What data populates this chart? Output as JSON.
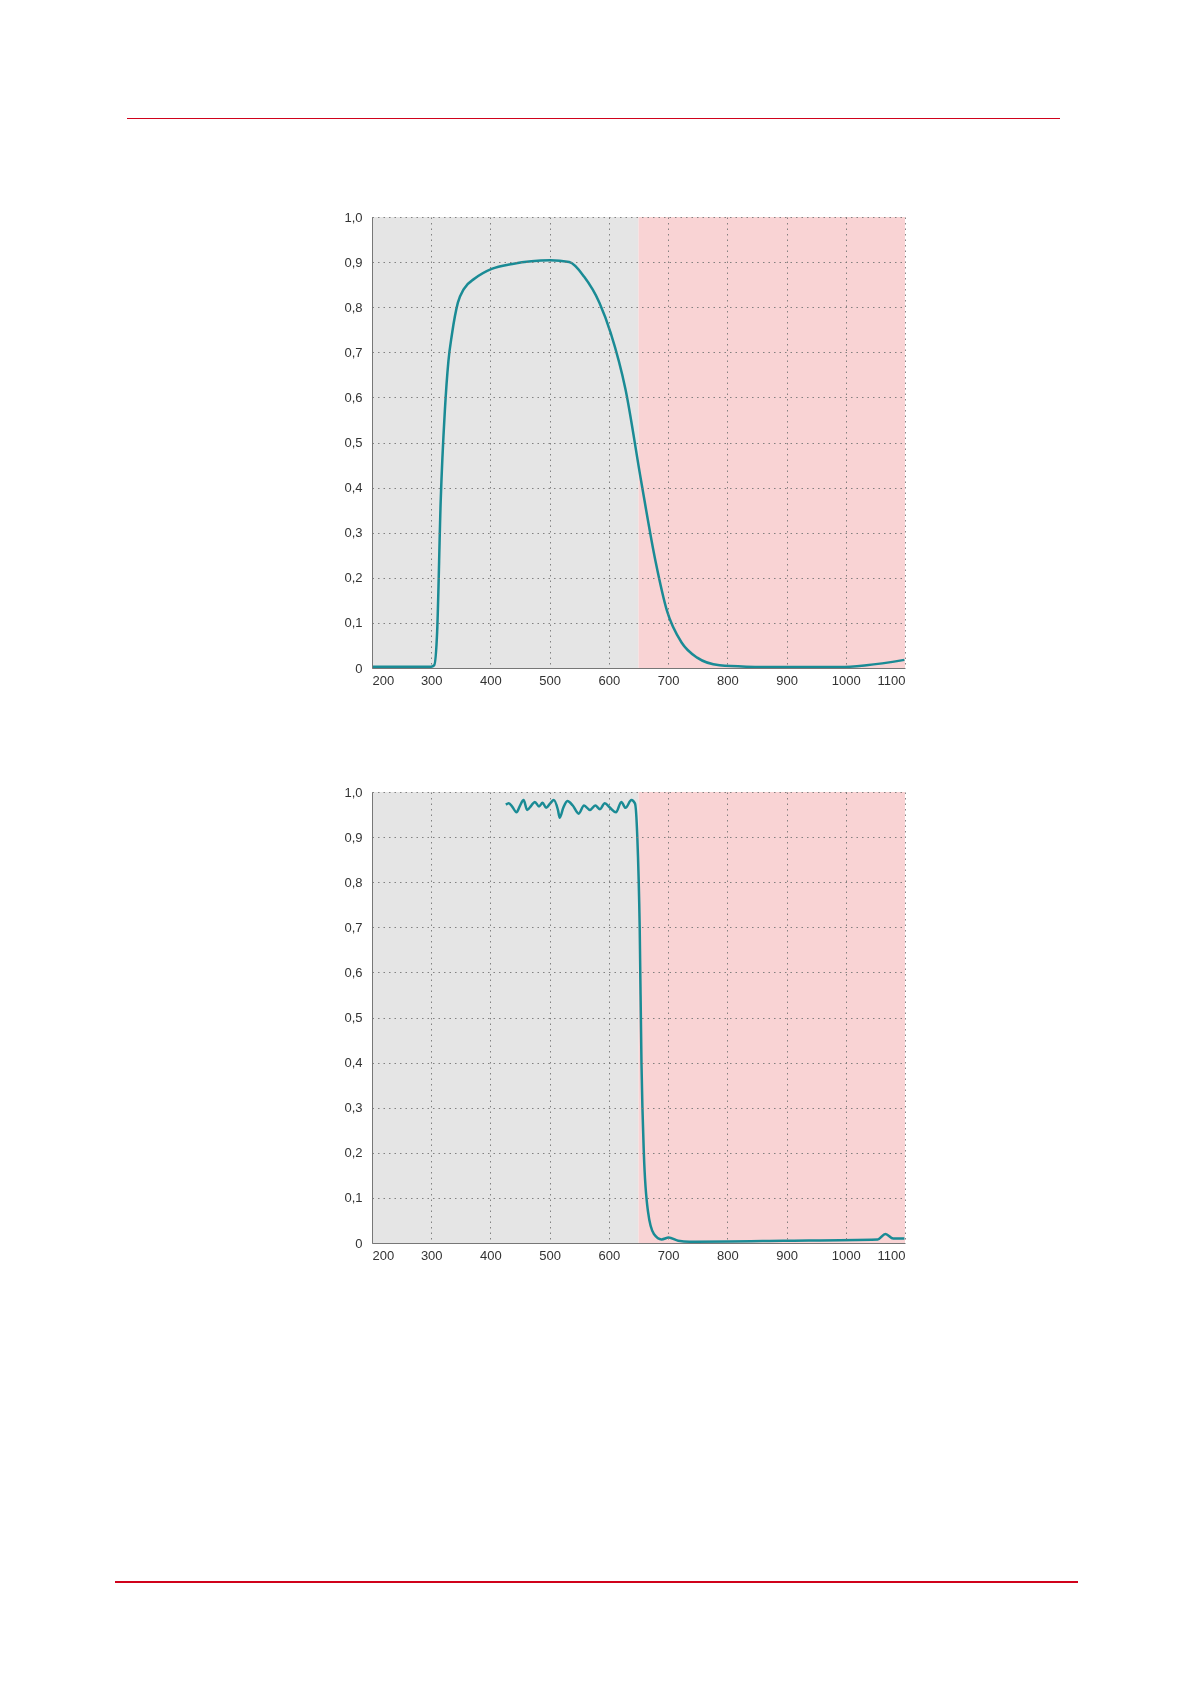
{
  "chart_data": [
    {
      "type": "line",
      "x": [
        200,
        300,
        305,
        310,
        316,
        323,
        329,
        335,
        345,
        355,
        374,
        402,
        437,
        501,
        533,
        558,
        584,
        603,
        628,
        654,
        679,
        698,
        723,
        749,
        787,
        832,
        895,
        991,
        1035,
        1099
      ],
      "series": [
        {
          "color": "#1a8b95",
          "values": [
            0.003,
            0.003,
            0.006,
            0.08,
            0.37,
            0.57,
            0.68,
            0.74,
            0.81,
            0.84,
            0.864,
            0.885,
            0.896,
            0.904,
            0.9,
            0.868,
            0.81,
            0.743,
            0.618,
            0.418,
            0.235,
            0.127,
            0.056,
            0.023,
            0.006,
            0.003,
            0.002,
            0.002,
            0.006,
            0.018
          ]
        }
      ],
      "xlim": [
        200,
        1100
      ],
      "xticks": [
        200,
        300,
        400,
        500,
        600,
        700,
        800,
        900,
        1000,
        1100
      ],
      "ylim": [
        0,
        1
      ],
      "yticks": [
        0,
        {
          "value": 0.1,
          "label": "0,1"
        },
        {
          "value": 0.2,
          "label": "0,2"
        },
        {
          "value": 0.3,
          "label": "0,3"
        },
        {
          "value": 0.4,
          "label": "0,4"
        },
        {
          "value": 0.5,
          "label": "0,5"
        },
        {
          "value": 0.6,
          "label": "0,6"
        },
        {
          "value": 0.7,
          "label": "0,7"
        },
        {
          "value": 0.8,
          "label": "0,8"
        },
        {
          "value": 0.9,
          "label": "0,9"
        },
        {
          "value": 1,
          "label": "1,0"
        }
      ],
      "bands": [
        {
          "axis": "x",
          "from": 200,
          "to": 650,
          "color": "#e5e5e5"
        },
        {
          "axis": "x",
          "from": 650,
          "to": 1100,
          "color": "#f9d3d4"
        }
      ],
      "grid": true,
      "line_style": "solid",
      "marker": "none"
    },
    {
      "type": "line",
      "x": [
        426,
        431,
        437,
        444,
        450,
        456,
        462,
        469,
        475,
        482,
        488,
        494,
        501,
        507,
        514,
        517,
        523,
        530,
        539,
        549,
        558,
        568,
        577,
        585,
        593,
        602,
        612,
        621,
        628,
        638,
        644,
        648,
        652,
        655,
        659,
        666,
        676,
        689,
        701,
        717,
        736,
        895,
        1054,
        1067,
        1080,
        1099
      ],
      "series": [
        {
          "color": "#1a8b95",
          "values": [
            0.972,
            0.975,
            0.967,
            0.955,
            0.97,
            0.982,
            0.96,
            0.97,
            0.978,
            0.968,
            0.976,
            0.965,
            0.975,
            0.982,
            0.96,
            0.943,
            0.965,
            0.98,
            0.97,
            0.952,
            0.97,
            0.96,
            0.97,
            0.962,
            0.975,
            0.965,
            0.955,
            0.978,
            0.965,
            0.982,
            0.975,
            0.9,
            0.7,
            0.4,
            0.2,
            0.07,
            0.02,
            0.008,
            0.012,
            0.005,
            0.003,
            0.005,
            0.008,
            0.02,
            0.01,
            0.01
          ]
        }
      ],
      "xlim": [
        200,
        1100
      ],
      "xticks": [
        200,
        300,
        400,
        500,
        600,
        700,
        800,
        900,
        1000,
        1100
      ],
      "ylim": [
        0,
        1
      ],
      "yticks": [
        0,
        {
          "value": 0.1,
          "label": "0,1"
        },
        {
          "value": 0.2,
          "label": "0,2"
        },
        {
          "value": 0.3,
          "label": "0,3"
        },
        {
          "value": 0.4,
          "label": "0,4"
        },
        {
          "value": 0.5,
          "label": "0,5"
        },
        {
          "value": 0.6,
          "label": "0,6"
        },
        {
          "value": 0.7,
          "label": "0,7"
        },
        {
          "value": 0.8,
          "label": "0,8"
        },
        {
          "value": 0.9,
          "label": "0,9"
        },
        {
          "value": 1,
          "label": "1,0"
        }
      ],
      "bands": [
        {
          "axis": "x",
          "from": 200,
          "to": 650,
          "color": "#e5e5e5"
        },
        {
          "axis": "x",
          "from": 650,
          "to": 1100,
          "color": "#f9d3d4"
        }
      ],
      "grid": true,
      "line_style": "solid",
      "marker": "none"
    }
  ]
}
